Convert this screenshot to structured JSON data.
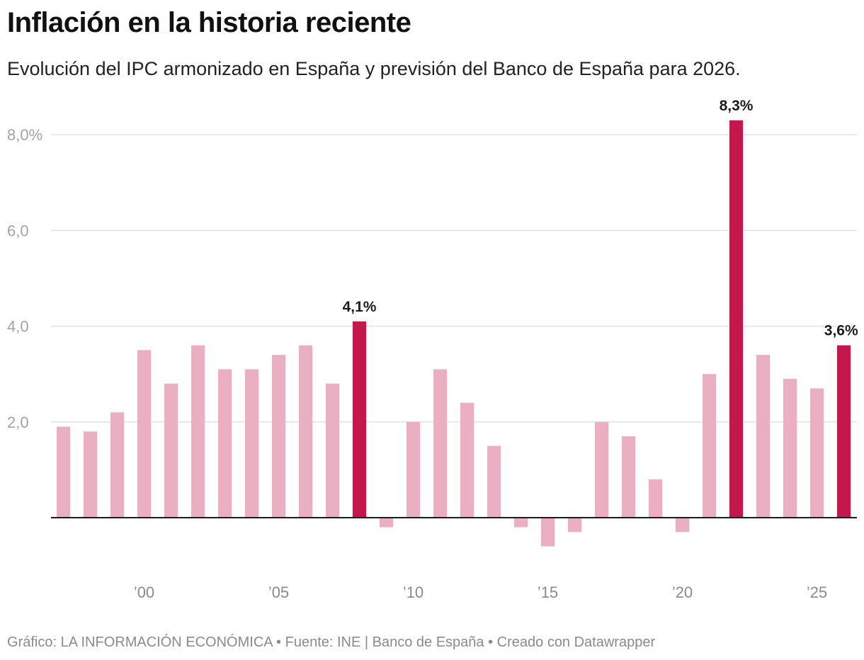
{
  "header": {
    "title": "Inflación en la historia reciente",
    "subtitle": "Evolución del IPC armonizado en España y previsión del Banco de España para 2026."
  },
  "footer": {
    "text": "Gráfico: LA INFORMACIÓN ECONÓMICA • Fuente: INE | Banco de España • Creado con Datawrapper"
  },
  "colors": {
    "bar": "#eab0c1",
    "highlight": "#c4174b",
    "grid": "#e2e2e2",
    "baseline": "#1d1d1d"
  },
  "chart_data": {
    "type": "bar",
    "title": "Inflación en la historia reciente",
    "subtitle": "Evolución del IPC armonizado en España y previsión del Banco de España para 2026.",
    "xlabel": "",
    "ylabel": "",
    "ylim": [
      -1.2,
      8.3
    ],
    "grid": true,
    "yticks": [
      {
        "value": 2,
        "label": "2,0"
      },
      {
        "value": 4,
        "label": "4,0"
      },
      {
        "value": 6,
        "label": "6,0"
      },
      {
        "value": 8,
        "label": "8,0%"
      }
    ],
    "xticks": [
      {
        "year": 2000,
        "label": "’00"
      },
      {
        "year": 2005,
        "label": "’05"
      },
      {
        "year": 2010,
        "label": "’10"
      },
      {
        "year": 2015,
        "label": "’15"
      },
      {
        "year": 2020,
        "label": "’20"
      },
      {
        "year": 2025,
        "label": "’25"
      }
    ],
    "years": [
      1997,
      1998,
      1999,
      2000,
      2001,
      2002,
      2003,
      2004,
      2005,
      2006,
      2007,
      2008,
      2009,
      2010,
      2011,
      2012,
      2013,
      2014,
      2015,
      2016,
      2017,
      2018,
      2019,
      2020,
      2021,
      2022,
      2023,
      2024,
      2025,
      2026
    ],
    "values": [
      1.9,
      1.8,
      2.2,
      3.5,
      2.8,
      3.6,
      3.1,
      3.1,
      3.4,
      3.6,
      2.8,
      4.1,
      -0.2,
      2.0,
      3.1,
      2.4,
      1.5,
      -0.2,
      -0.6,
      -0.3,
      2.0,
      1.7,
      0.8,
      -0.3,
      3.0,
      8.3,
      3.4,
      2.9,
      2.7,
      3.6
    ],
    "highlighted": [
      2008,
      2022,
      2026
    ],
    "data_labels": [
      {
        "year": 2008,
        "label": "4,1%"
      },
      {
        "year": 2022,
        "label": "8,3%"
      },
      {
        "year": 2026,
        "label": "3,6%"
      }
    ]
  }
}
